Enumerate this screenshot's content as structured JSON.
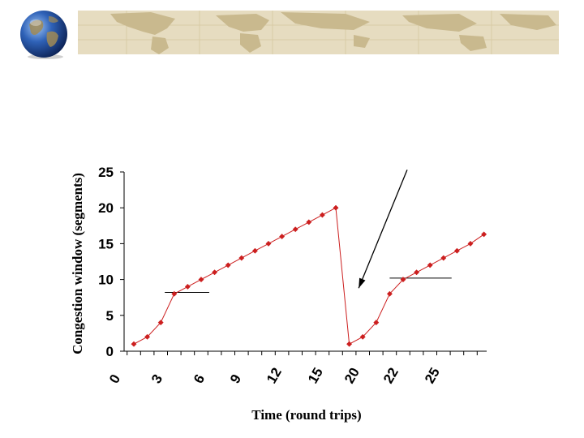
{
  "colors": {
    "series": "#cc1f1f",
    "axis": "#000000",
    "banner": "#e6dcc0",
    "banner_land": "#c9b98e"
  },
  "decorations": {
    "globe_icon": "globe-icon",
    "banner_image": "world-map-banner"
  },
  "chart_data": {
    "type": "line",
    "xlabel": "Time (round trips)",
    "ylabel": "Congestion window (segments)",
    "x_tick_labels": [
      "0",
      "3",
      "6",
      "9",
      "12",
      "15",
      "20",
      "22",
      "25"
    ],
    "y_tick_labels": [
      "0",
      "5",
      "10",
      "15",
      "20",
      "25"
    ],
    "ylim": [
      0,
      25
    ],
    "grid": false,
    "series": [
      {
        "x": [
          0,
          1,
          2,
          3,
          4,
          5,
          6,
          7,
          8,
          9,
          10,
          11,
          12,
          13,
          14,
          15,
          16,
          17,
          18,
          19,
          20,
          21,
          22,
          23,
          24,
          25,
          26
        ],
        "values": [
          1,
          2,
          4,
          8,
          9,
          10,
          11,
          12,
          13,
          14,
          15,
          16,
          17,
          18,
          19,
          20,
          1,
          2,
          4,
          8,
          10,
          11,
          12,
          13,
          14,
          15,
          16.3
        ]
      }
    ],
    "threshold_markers": [
      {
        "x_from": 2.3,
        "x_to": 5.6,
        "y": 8.2
      },
      {
        "x_from": 19.0,
        "x_to": 23.6,
        "y": 10.2
      }
    ],
    "arrow": {
      "from": [
        20.3,
        25.3
      ],
      "to": [
        16.7,
        8.8
      ]
    }
  }
}
